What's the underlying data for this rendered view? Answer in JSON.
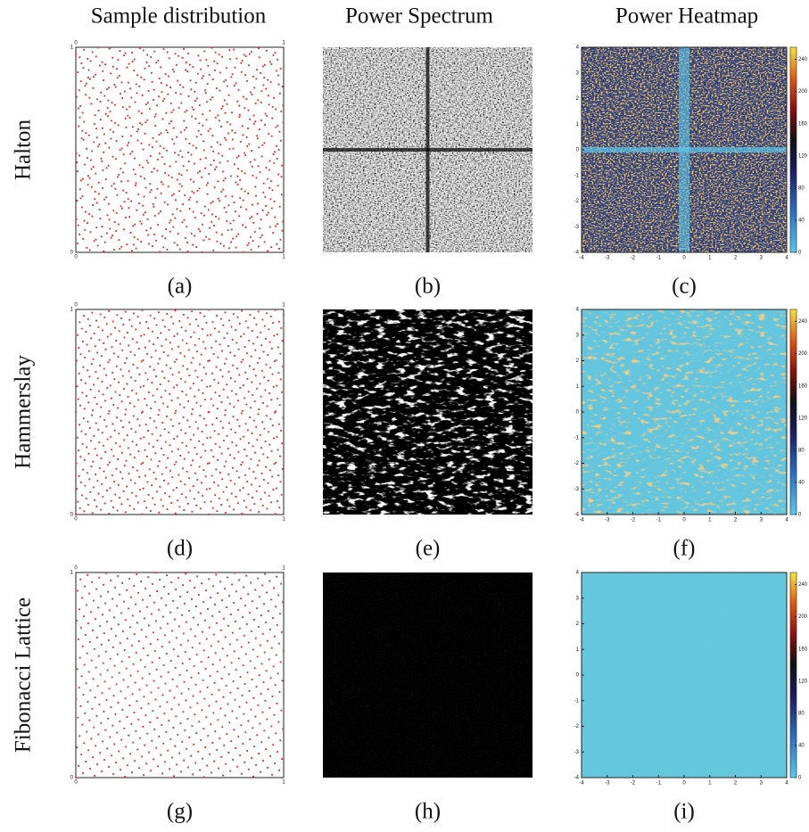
{
  "headers": [
    "Sample distribution",
    "Power Spectrum",
    "Power Heatmap"
  ],
  "rows": [
    {
      "label": "Halton",
      "captions": [
        "(a)",
        "(b)",
        "(c)"
      ]
    },
    {
      "label": "Hammerslay",
      "captions": [
        "(d)",
        "(e)",
        "(f)"
      ]
    },
    {
      "label": "Fibonacci Lattice",
      "captions": [
        "(g)",
        "(h)",
        "(i)"
      ]
    }
  ],
  "sample_axis": {
    "ticks": [
      0,
      1
    ]
  },
  "heatmap_axis": {
    "ticks": [
      -4,
      -3,
      -2,
      -1,
      0,
      1,
      2,
      3,
      4
    ],
    "colorbar_ticks": [
      0,
      40,
      80,
      120,
      160,
      200,
      240
    ]
  }
}
